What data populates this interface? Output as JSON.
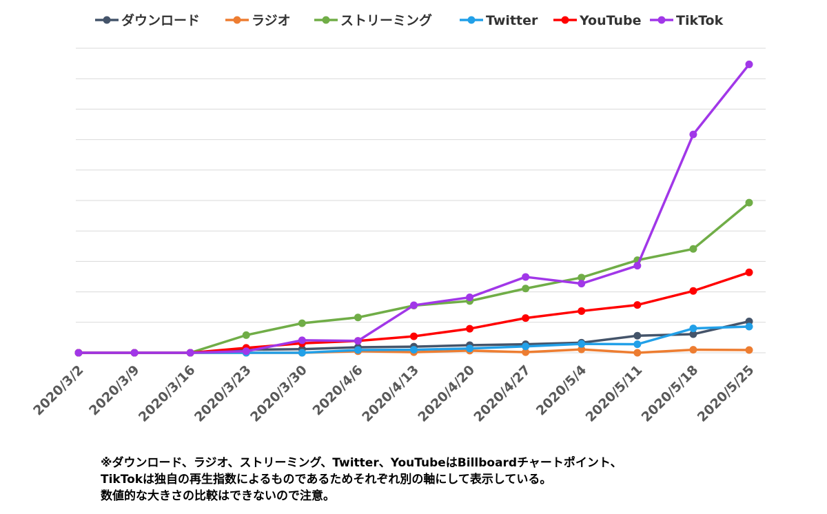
{
  "chart_data": {
    "type": "line",
    "categories": [
      "2020/3/2",
      "2020/3/9",
      "2020/3/16",
      "2020/3/23",
      "2020/3/30",
      "2020/4/6",
      "2020/4/13",
      "2020/4/20",
      "2020/4/27",
      "2020/5/4",
      "2020/5/11",
      "2020/5/18",
      "2020/5/25"
    ],
    "ylim": [
      0,
      10
    ],
    "grid": true,
    "legend_position": "top",
    "series": [
      {
        "name": "ダウンロード",
        "color": "#44546a",
        "values": [
          0,
          0,
          0,
          0.1,
          0.12,
          0.18,
          0.2,
          0.25,
          0.28,
          0.33,
          0.56,
          0.61,
          1.03
        ]
      },
      {
        "name": "ラジオ",
        "color": "#ed7d31",
        "values": [
          0,
          0,
          0,
          0,
          0,
          0.05,
          0.02,
          0.07,
          0.02,
          0.11,
          0,
          0.1,
          0.09
        ]
      },
      {
        "name": "ストリーミング",
        "color": "#70ad47",
        "values": [
          0,
          0,
          0,
          0.58,
          0.97,
          1.16,
          1.55,
          1.7,
          2.11,
          2.47,
          3.04,
          3.41,
          4.93
        ]
      },
      {
        "name": "Twitter",
        "color": "#22a0e8",
        "values": [
          0,
          0,
          0,
          0,
          0,
          0.09,
          0.1,
          0.14,
          0.21,
          0.29,
          0.28,
          0.8,
          0.86
        ]
      },
      {
        "name": "YouTube",
        "color": "#ff0000",
        "values": [
          0,
          0,
          0,
          0.16,
          0.31,
          0.39,
          0.54,
          0.79,
          1.14,
          1.37,
          1.57,
          2.03,
          2.64
        ]
      },
      {
        "name": "TikTok",
        "color": "#a137e8",
        "values": [
          0,
          0,
          0,
          0.05,
          0.41,
          0.39,
          1.56,
          1.82,
          2.49,
          2.27,
          2.86,
          7.17,
          9.47
        ]
      }
    ]
  },
  "note": {
    "line1": "※ダウンロード、ラジオ、ストリーミング、Twitter、YouTubeはBillboardチャートポイント、",
    "line2": "TikTokは独自の再生指数によるものであるためそれぞれ別の軸にして表示している。",
    "line3": "数値的な大きさの比較はできないので注意。"
  }
}
